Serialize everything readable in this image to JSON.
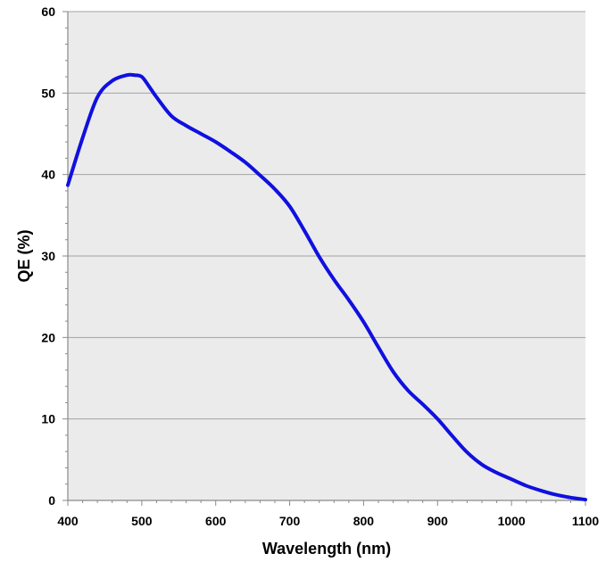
{
  "chart_data": {
    "type": "line",
    "title": "",
    "xlabel": "Wavelength (nm)",
    "ylabel": "QE (%)",
    "xlim": [
      400,
      1100
    ],
    "ylim": [
      0,
      60
    ],
    "x_ticks": [
      "400",
      "500",
      "600",
      "700",
      "800",
      "900",
      "1000",
      "1100"
    ],
    "y_ticks": [
      "0",
      "10",
      "20",
      "30",
      "40",
      "50",
      "60"
    ],
    "grid": "horizontal",
    "background": "#ebebeb",
    "series": [
      {
        "color": "#1010e0",
        "x": [
          400,
          420,
          440,
          460,
          480,
          490,
          500,
          510,
          520,
          540,
          560,
          580,
          600,
          620,
          640,
          660,
          680,
          700,
          720,
          740,
          760,
          780,
          800,
          820,
          840,
          860,
          880,
          900,
          920,
          940,
          960,
          980,
          1000,
          1020,
          1040,
          1060,
          1080,
          1100
        ],
        "y": [
          38.7,
          44.5,
          49.5,
          51.5,
          52.2,
          52.2,
          52.0,
          50.8,
          49.5,
          47.2,
          46.0,
          45.0,
          44.0,
          42.8,
          41.5,
          39.9,
          38.2,
          36.1,
          33.1,
          29.9,
          27.1,
          24.6,
          21.9,
          18.8,
          15.8,
          13.5,
          11.8,
          10.0,
          7.9,
          5.9,
          4.4,
          3.4,
          2.6,
          1.8,
          1.2,
          0.7,
          0.35,
          0.1
        ]
      }
    ]
  }
}
